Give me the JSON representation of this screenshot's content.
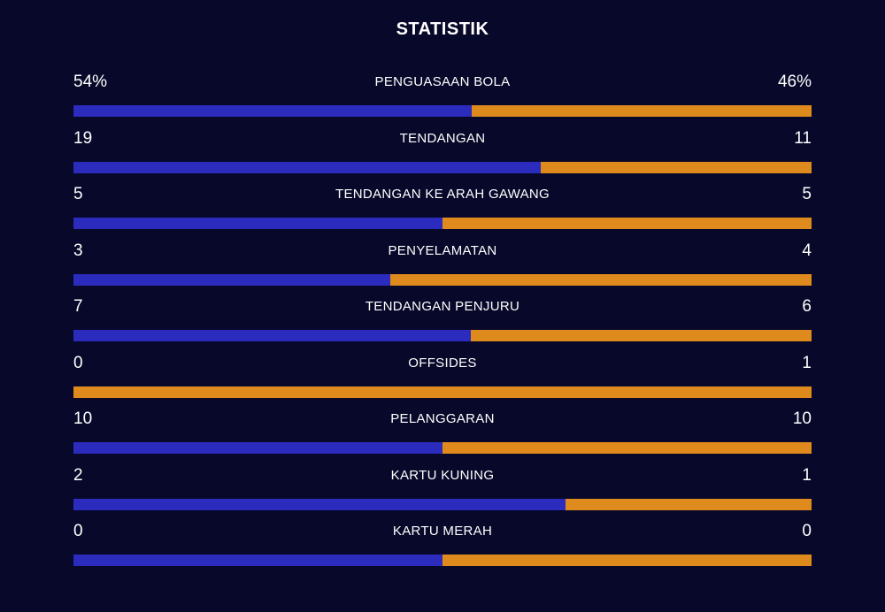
{
  "title": "STATISTIK",
  "colors": {
    "background": "#08082a",
    "home": "#2b2bbd",
    "away": "#df8a1c"
  },
  "stats": [
    {
      "label": "PENGUASAAN BOLA",
      "home": "54%",
      "away": "46%",
      "home_share": 0.54
    },
    {
      "label": "TENDANGAN",
      "home": "19",
      "away": "11",
      "home_share": 0.633
    },
    {
      "label": "TENDANGAN KE ARAH GAWANG",
      "home": "5",
      "away": "5",
      "home_share": 0.5
    },
    {
      "label": "PENYELAMATAN",
      "home": "3",
      "away": "4",
      "home_share": 0.429
    },
    {
      "label": "TENDANGAN PENJURU",
      "home": "7",
      "away": "6",
      "home_share": 0.538
    },
    {
      "label": "OFFSIDES",
      "home": "0",
      "away": "1",
      "home_share": 0.0
    },
    {
      "label": "PELANGGARAN",
      "home": "10",
      "away": "10",
      "home_share": 0.5
    },
    {
      "label": "KARTU KUNING",
      "home": "2",
      "away": "1",
      "home_share": 0.667
    },
    {
      "label": "KARTU MERAH",
      "home": "0",
      "away": "0",
      "home_share": 0.5
    }
  ]
}
